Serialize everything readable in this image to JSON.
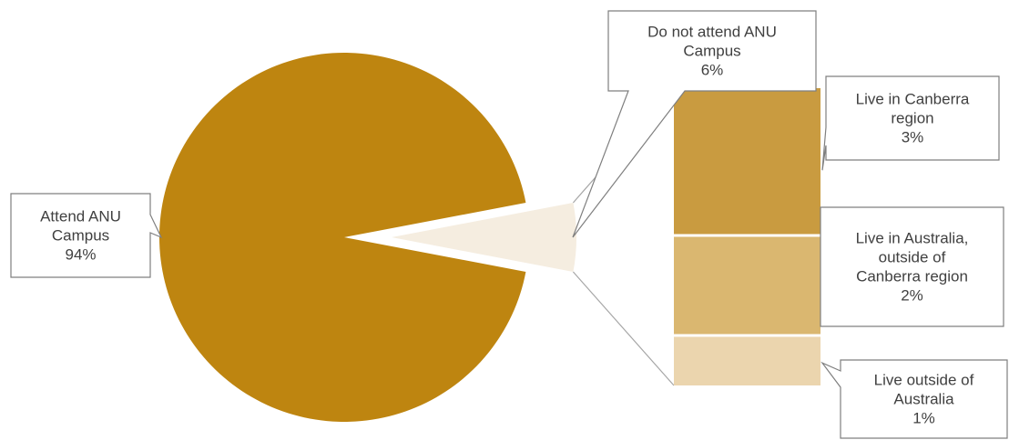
{
  "chart_data": {
    "type": "bar-of-pie",
    "pie": {
      "slices": [
        {
          "label_lines": [
            "Attend ANU",
            "Campus"
          ],
          "value": 94,
          "value_label": "94%",
          "color": "#be8510"
        },
        {
          "label_lines": [
            "Do not attend ANU",
            "Campus"
          ],
          "value": 6,
          "value_label": "6%",
          "color": "#f5ede0"
        }
      ]
    },
    "bar": {
      "segments": [
        {
          "label_lines": [
            "Live in Canberra",
            "region"
          ],
          "value": 3,
          "value_label": "3%",
          "color": "#c99b40"
        },
        {
          "label_lines": [
            "Live in Australia,",
            "outside of",
            "Canberra region"
          ],
          "value": 2,
          "value_label": "2%",
          "color": "#dab770"
        },
        {
          "label_lines": [
            "Live outside of",
            "Australia"
          ],
          "value": 1,
          "value_label": "1%",
          "color": "#ebd5ae"
        }
      ]
    }
  }
}
